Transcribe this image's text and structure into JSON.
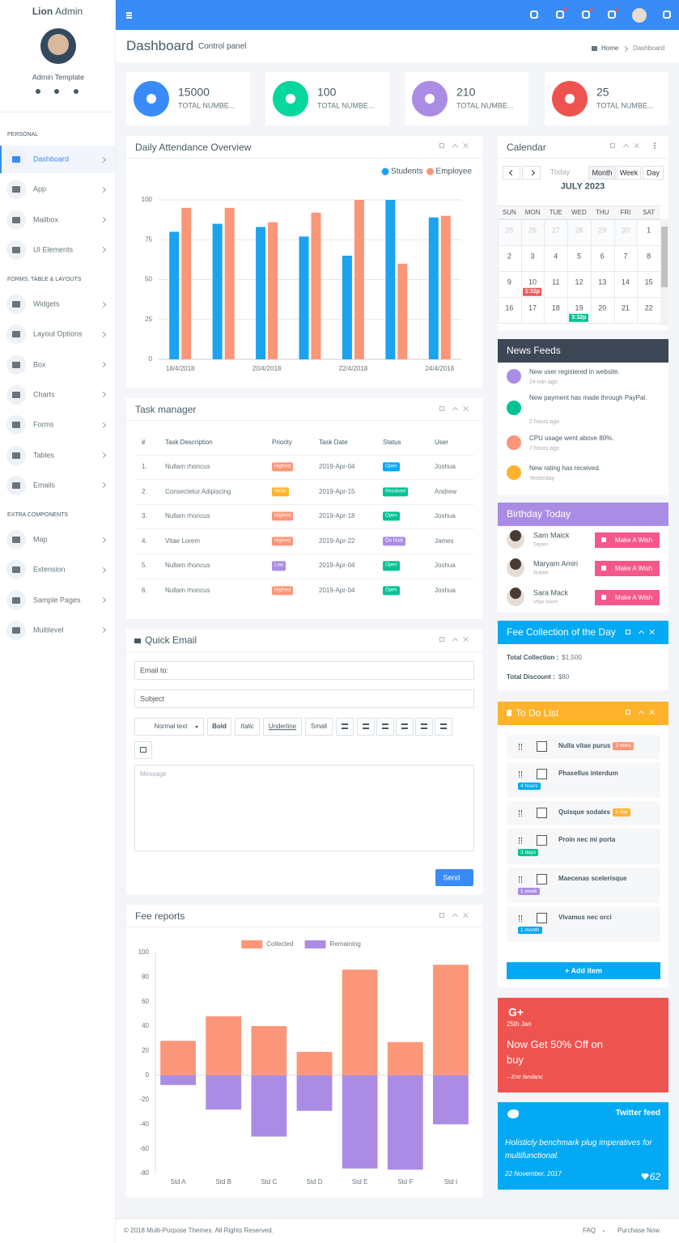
{
  "sidebar": {
    "brand_bold": "Lion",
    "brand_light": "Admin",
    "user": "Admin Template",
    "sections": [
      {
        "title": "PERSONAL",
        "items": [
          "Dashboard",
          "App",
          "Mailbox",
          "UI Elements"
        ]
      },
      {
        "title": "FORMS, TABLE & LAYOUTS",
        "items": [
          "Widgets",
          "Layout Options",
          "Box",
          "Charts",
          "Forms",
          "Tables",
          "Emails"
        ]
      },
      {
        "title": "EXTRA COMPONENTS",
        "items": [
          "Map",
          "Extension",
          "Sample Pages",
          "Multilevel"
        ]
      }
    ]
  },
  "header": {
    "title": "Dashboard",
    "subtitle": "Control panel",
    "breadcrumb": [
      "Home",
      "Dashboard"
    ]
  },
  "stats": [
    {
      "value": 15000,
      "label": "TOTAL NUMBE...",
      "color": "#398bf7"
    },
    {
      "value": 100,
      "label": "TOTAL NUMBE...",
      "color": "#06d79c"
    },
    {
      "value": 210,
      "label": "TOTAL NUMBE...",
      "color": "#ab8ce4"
    },
    {
      "value": 25,
      "label": "TOTAL NUMBE...",
      "color": "#ef5350"
    }
  ],
  "chart_data": [
    {
      "type": "bar",
      "title": "Daily Attendance Overview",
      "categories": [
        "18/4/2018",
        null,
        "20/4/2018",
        null,
        "22/4/2018",
        null,
        "24/4/2018"
      ],
      "series": [
        {
          "name": "Students",
          "color": "#1ba3f0",
          "values": [
            80,
            85,
            83,
            77,
            65,
            100,
            89
          ]
        },
        {
          "name": "Employee",
          "color": "#fb9678",
          "values": [
            95,
            95,
            86,
            92,
            100,
            60,
            90
          ]
        }
      ],
      "ylim": [
        0,
        100
      ],
      "yticks": [
        0,
        25,
        50,
        75,
        100
      ],
      "grid": true,
      "legend": "top-right",
      "stacked": false
    },
    {
      "type": "bar",
      "title": "Fee reports",
      "categories": [
        "Std A",
        "Std B",
        "Std C",
        "Std D",
        "Std E",
        "Std F",
        "Std I"
      ],
      "series": [
        {
          "name": "Collected",
          "color": "#fb9678",
          "values": [
            28,
            48,
            40,
            19,
            86,
            27,
            90
          ]
        },
        {
          "name": "Remaining",
          "color": "#ab8ce4",
          "values": [
            -8,
            -28,
            -50,
            -29,
            -76,
            -77,
            -40
          ]
        }
      ],
      "ylim": [
        -80,
        100
      ],
      "yticks": [
        -80,
        -60,
        -40,
        -20,
        0,
        20,
        40,
        60,
        80,
        100
      ],
      "grid": false,
      "legend": "top",
      "stacked": true
    }
  ],
  "task_manager": {
    "title": "Task manager",
    "columns": [
      "#",
      "Task Description",
      "Priority",
      "Task Date",
      "Status",
      "User"
    ],
    "rows": [
      {
        "no": "1.",
        "task": "Nullam rhoncus",
        "priority": "Highest",
        "priority_color": "#fb9678",
        "date": "2019-Apr-04",
        "status": "Open",
        "status_color": "#03a9f3",
        "user": "Joshua"
      },
      {
        "no": "2.",
        "task": "Consectetur Adipiscing",
        "priority": "HIGH",
        "priority_color": "#ffb22b",
        "date": "2019-Apr-15",
        "status": "Resolved",
        "status_color": "#00c292",
        "user": "Andrew"
      },
      {
        "no": "3.",
        "task": "Nullam rhoncus",
        "priority": "Highest",
        "priority_color": "#fb9678",
        "date": "2019-Apr-18",
        "status": "Open",
        "status_color": "#00c292",
        "user": "Joshua"
      },
      {
        "no": "4.",
        "task": "Vitae Lorem",
        "priority": "Highest",
        "priority_color": "#fb9678",
        "date": "2019-Apr-22",
        "status": "On Hold",
        "status_color": "#ab8ce4",
        "user": "James"
      },
      {
        "no": "5.",
        "task": "Nullam rhoncus",
        "priority": "Low",
        "priority_color": "#ab8ce4",
        "date": "2019-Apr-04",
        "status": "Open",
        "status_color": "#00c292",
        "user": "Joshua"
      },
      {
        "no": "6.",
        "task": "Nullam rhoncus",
        "priority": "Highest",
        "priority_color": "#fb9678",
        "date": "2019-Apr-04",
        "status": "Open",
        "status_color": "#00c292",
        "user": "Joshua"
      }
    ]
  },
  "quick_email": {
    "title": "Quick Email",
    "email_to": "Email to:",
    "subject": "Subject",
    "toolbar": [
      "Normal text",
      "Bold",
      "Italic",
      "Underline",
      "Small"
    ],
    "message": "Message",
    "send": "Send"
  },
  "calendar": {
    "title": "Calendar",
    "today": "Today",
    "views": [
      "Month",
      "Week",
      "Day"
    ],
    "month": "JULY 2023",
    "weekdays": [
      "SUN",
      "MON",
      "TUE",
      "WED",
      "THU",
      "FRI",
      "SAT"
    ],
    "weeks": [
      [
        25,
        26,
        27,
        28,
        29,
        30,
        1
      ],
      [
        2,
        3,
        4,
        5,
        6,
        7,
        8
      ],
      [
        9,
        10,
        11,
        12,
        13,
        14,
        15
      ],
      [
        16,
        17,
        18,
        19,
        20,
        21,
        22
      ]
    ],
    "events": [
      {
        "day": 10,
        "label": "1:32p",
        "color": "#f05a5a"
      },
      {
        "day": 19,
        "label": "3:32p",
        "color": "#00c292"
      }
    ]
  },
  "news_feeds": {
    "title": "News Feeds",
    "items": [
      {
        "text": "New user registered in website.",
        "time": "24 min ago",
        "color": "#ab8ce4"
      },
      {
        "text": "New payment has made through PayPal.",
        "time": "2 hours ago",
        "color": "#00c292"
      },
      {
        "text": "CPU usage went above 80%.",
        "time": "7 hours ago",
        "color": "#fb9678"
      },
      {
        "text": "New rating has received.",
        "time": "Yesterday",
        "color": "#ffb22b"
      }
    ]
  },
  "birthday": {
    "title": "Birthday Today",
    "button": "Make A Wish",
    "people": [
      {
        "name": "Sam Maick",
        "note": "Sapien"
      },
      {
        "name": "Maryam Amiri",
        "note": "Nullam"
      },
      {
        "name": "Sara Mack",
        "note": "Vitae lorem"
      }
    ]
  },
  "fee_collection": {
    "title": "Fee Collection of the Day",
    "rows": [
      {
        "label": "Total Collection :",
        "value": "$1,500"
      },
      {
        "label": "Total Discount :",
        "value": "$80"
      }
    ]
  },
  "todo": {
    "title": "To Do List",
    "add": "+ Add item",
    "items": [
      {
        "text": "Nulla vitae purus",
        "badge": "2 mins",
        "badge_color": "#fb9678"
      },
      {
        "text": "Phasellus interdum",
        "badge": "4 hours",
        "badge_color": "#03a9f3"
      },
      {
        "text": "Quisque sodales",
        "badge": "1 day",
        "badge_color": "#ffb22b"
      },
      {
        "text": "Proin nec mi porta",
        "badge": "3 days",
        "badge_color": "#00c292"
      },
      {
        "text": "Maecenas scelerisque",
        "badge": "1 week",
        "badge_color": "#ab8ce4"
      },
      {
        "text": "Vivamus nec orci",
        "badge": "1 month",
        "badge_color": "#03a9f3"
      }
    ]
  },
  "promo": {
    "brand": "G+",
    "date": "25th Jan",
    "headline": "Now Get 50% Off on buy",
    "author": "– Eric fandanc"
  },
  "twitter": {
    "title": "Twitter feed",
    "quote": "Holisticly benchmark plug imperatives for multifunctional.",
    "date": "22 November, 2017",
    "likes": 62
  },
  "footer": {
    "copyright": "© 2018 Multi-Purpose Themes. All Rights Reserved.",
    "links": [
      "FAQ",
      "Purchase Now"
    ]
  }
}
